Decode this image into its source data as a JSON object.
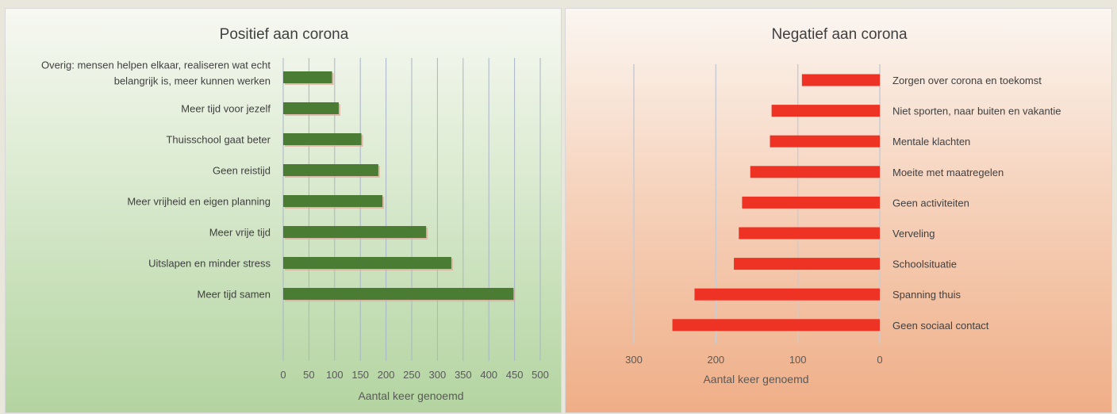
{
  "chart_data": [
    {
      "type": "bar",
      "orientation": "horizontal",
      "title": "Positief aan corona",
      "xlabel": "Aantal keer genoemd",
      "xlim": [
        0,
        500
      ],
      "ticks": [
        0,
        50,
        100,
        150,
        200,
        250,
        300,
        350,
        400,
        450,
        500
      ],
      "bar_color": "#4a7c34",
      "grid": true,
      "categories": [
        [
          "Overig: mensen helpen elkaar, realiseren wat echt",
          "belangrijk is, meer kunnen werken"
        ],
        [
          "Meer tijd voor jezelf"
        ],
        [
          "Thuisschool gaat beter"
        ],
        [
          "Geen reistijd"
        ],
        [
          "Meer vrijheid en eigen planning"
        ],
        [
          "Meer vrije tijd"
        ],
        [
          "Uitslapen en minder stress"
        ],
        [
          "Meer tijd samen"
        ]
      ],
      "values": [
        95,
        108,
        152,
        185,
        193,
        278,
        327,
        448
      ]
    },
    {
      "type": "bar",
      "orientation": "horizontal",
      "x_axis_reversed": true,
      "title": "Negatief aan corona",
      "xlabel": "Aantal keer genoemd",
      "xlim": [
        0,
        300
      ],
      "ticks": [
        0,
        100,
        200,
        300
      ],
      "bar_color": "#ee3224",
      "grid": true,
      "categories": [
        "Zorgen over corona en toekomst",
        "Niet sporten, naar buiten en vakantie",
        "Mentale klachten",
        "Moeite met maatregelen",
        "Geen activiteiten",
        "Verveling",
        "Schoolsituatie",
        "Spanning thuis",
        "Geen sociaal contact"
      ],
      "values": [
        95,
        132,
        134,
        158,
        168,
        172,
        178,
        226,
        253
      ]
    }
  ]
}
